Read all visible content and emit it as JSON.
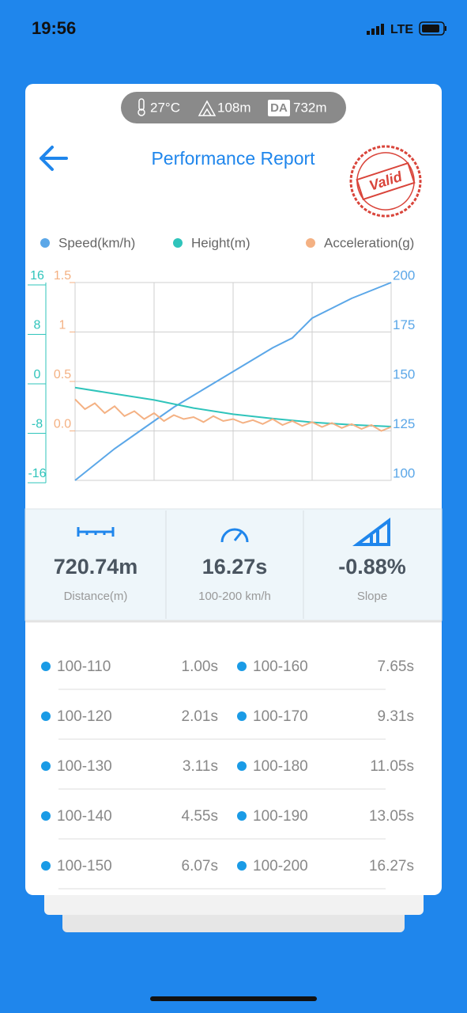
{
  "status_bar": {
    "time": "19:56",
    "network": "LTE"
  },
  "conditions": {
    "temperature": "27°C",
    "altitude": "108m",
    "da_label": "DA",
    "density_altitude": "732m"
  },
  "header": {
    "title": "Performance Report",
    "stamp": "Valid"
  },
  "chart_data": {
    "type": "line",
    "xlim": [
      0,
      16
    ],
    "ylim": [
      100,
      200
    ],
    "yticks": [
      100,
      125,
      150,
      175,
      200
    ],
    "y2lim": [
      -16,
      16
    ],
    "y2ticks": [
      -16,
      -8,
      0,
      8,
      16
    ],
    "y3lim": [
      -0.5,
      1.5
    ],
    "y3ticks": [
      {
        "value": 0,
        "label": "0.0"
      },
      0.5,
      1,
      1.5
    ],
    "grid": true,
    "series": [
      {
        "name": "Speed(km/h)",
        "color": "#5ba7e8",
        "axis": "y",
        "x": [
          0,
          1,
          2,
          3,
          4,
          5,
          6,
          7,
          8,
          9,
          10,
          11,
          12,
          13,
          14,
          15,
          16
        ],
        "values": [
          100,
          108,
          116,
          123,
          130,
          137,
          143,
          149,
          155,
          161,
          167,
          172,
          182,
          187,
          192,
          196,
          200
        ]
      },
      {
        "name": "Height(m)",
        "color": "#2fc4bb",
        "axis": "y2",
        "x": [
          0,
          2,
          4,
          6,
          8,
          10,
          12,
          14,
          16
        ],
        "values": [
          -1,
          -2,
          -3,
          -4.3,
          -5.3,
          -6,
          -6.6,
          -7,
          -7.3
        ]
      },
      {
        "name": "Acceleration(g)",
        "color": "#f4b183",
        "axis": "y3",
        "x": [
          0,
          0.5,
          1,
          1.5,
          2,
          2.5,
          3,
          3.5,
          4,
          4.5,
          5,
          5.5,
          6,
          6.5,
          7,
          7.5,
          8,
          8.5,
          9,
          9.5,
          10,
          10.5,
          11,
          11.5,
          12,
          12.5,
          13,
          13.5,
          14,
          14.5,
          15,
          15.5,
          16
        ],
        "values": [
          0.32,
          0.22,
          0.28,
          0.18,
          0.25,
          0.15,
          0.2,
          0.12,
          0.18,
          0.1,
          0.16,
          0.12,
          0.14,
          0.09,
          0.15,
          0.1,
          0.12,
          0.08,
          0.11,
          0.07,
          0.12,
          0.06,
          0.1,
          0.05,
          0.09,
          0.04,
          0.08,
          0.03,
          0.07,
          0.02,
          0.06,
          0.0,
          0.04
        ]
      }
    ]
  },
  "stats": [
    {
      "value": "720.74m",
      "label": "Distance(m)"
    },
    {
      "value": "16.27s",
      "label": "100-200 km/h"
    },
    {
      "value": "-0.88%",
      "label": "Slope"
    }
  ],
  "splits": [
    {
      "range": "100-110",
      "time": "1.00s"
    },
    {
      "range": "100-160",
      "time": "7.65s"
    },
    {
      "range": "100-120",
      "time": "2.01s"
    },
    {
      "range": "100-170",
      "time": "9.31s"
    },
    {
      "range": "100-130",
      "time": "3.11s"
    },
    {
      "range": "100-180",
      "time": "11.05s"
    },
    {
      "range": "100-140",
      "time": "4.55s"
    },
    {
      "range": "100-190",
      "time": "13.05s"
    },
    {
      "range": "100-150",
      "time": "6.07s"
    },
    {
      "range": "100-200",
      "time": "16.27s"
    }
  ]
}
